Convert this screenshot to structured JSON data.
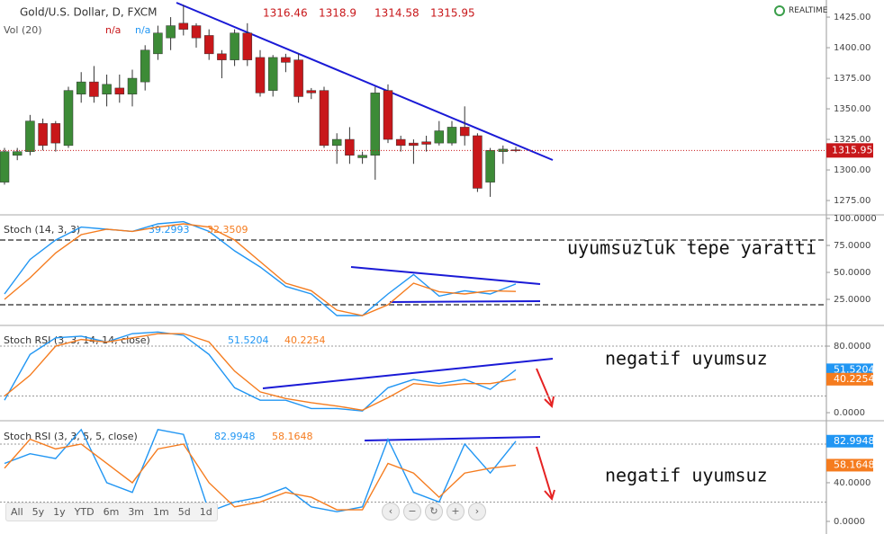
{
  "badge": "REALTIME",
  "toolbar": {
    "buttons": [
      "All",
      "5y",
      "1y",
      "YTD",
      "6m",
      "3m",
      "1m",
      "5d",
      "1d"
    ]
  },
  "chart_data": [
    {
      "type": "candlestick",
      "title": "Gold/U.S. Dollar, D, FXCM",
      "indicator": {
        "name": "Vol (20)",
        "values": [
          "n/a",
          "n/a"
        ]
      },
      "up_color": "#3d8b37",
      "down_color": "#c8171a",
      "open": [
        1290,
        1312,
        1315,
        1338,
        1338,
        1320,
        1362,
        1372,
        1362,
        1367,
        1362,
        1372,
        1395,
        1408,
        1420,
        1418,
        1410,
        1395,
        1390,
        1412,
        1392,
        1365,
        1392,
        1390,
        1365,
        1365,
        1320,
        1325,
        1310,
        1312,
        1365,
        1325,
        1322,
        1323,
        1322,
        1322,
        1335,
        1328,
        1290,
        1315,
        1316.46
      ],
      "high": [
        1318,
        1318,
        1345,
        1342,
        1340,
        1368,
        1380,
        1385,
        1378,
        1378,
        1382,
        1402,
        1418,
        1425,
        1435,
        1420,
        1415,
        1398,
        1415,
        1420,
        1398,
        1394,
        1395,
        1395,
        1367,
        1368,
        1330,
        1335,
        1315,
        1368,
        1370,
        1328,
        1325,
        1328,
        1340,
        1340,
        1352,
        1330,
        1318,
        1320,
        1318.9
      ],
      "low": [
        1288,
        1308,
        1312,
        1316,
        1315,
        1318,
        1355,
        1355,
        1352,
        1355,
        1352,
        1365,
        1390,
        1398,
        1410,
        1400,
        1390,
        1375,
        1385,
        1385,
        1360,
        1360,
        1380,
        1355,
        1358,
        1318,
        1305,
        1305,
        1305,
        1292,
        1322,
        1315,
        1305,
        1315,
        1320,
        1320,
        1320,
        1282,
        1278,
        1305,
        1314.58
      ],
      "close": [
        1315,
        1315,
        1340,
        1320,
        1322,
        1365,
        1372,
        1360,
        1370,
        1362,
        1375,
        1398,
        1412,
        1418,
        1415,
        1408,
        1395,
        1390,
        1412,
        1390,
        1363,
        1392,
        1388,
        1360,
        1363,
        1320,
        1325,
        1312,
        1312,
        1363,
        1325,
        1320,
        1320,
        1321,
        1332,
        1335,
        1328,
        1285,
        1316,
        1317,
        1315.95
      ],
      "ylim": [
        1264,
        1439
      ],
      "yticks": [
        {
          "value": 1275,
          "label": "1275.00"
        },
        {
          "value": 1300,
          "label": "1300.00"
        },
        {
          "value": 1325,
          "label": "1325.00"
        },
        {
          "value": 1350,
          "label": "1350.00"
        },
        {
          "value": 1375,
          "label": "1375.00"
        },
        {
          "value": 1400,
          "label": "1400.00"
        },
        {
          "value": 1425,
          "label": "1425.00"
        }
      ]
    },
    {
      "type": "line",
      "title": "Stoch (14, 3, 3)",
      "annotation": "uyumsuzluk tepe yaratti",
      "x": [
        0,
        2,
        4,
        6,
        8,
        10,
        12,
        14,
        16,
        18,
        20,
        22,
        24,
        26,
        28,
        30,
        32,
        34,
        36,
        38,
        40
      ],
      "series": [
        {
          "color": "#2196f3",
          "values": [
            30,
            62,
            80,
            92,
            90,
            88,
            95,
            97,
            88,
            70,
            55,
            37,
            30,
            10,
            10,
            30,
            48,
            28,
            33,
            30,
            39.2993
          ]
        },
        {
          "color": "#f57c1f",
          "values": [
            25,
            45,
            68,
            85,
            90,
            88,
            92,
            95,
            92,
            80,
            60,
            40,
            33,
            15,
            10,
            20,
            40,
            32,
            30,
            33,
            32.3509
          ]
        }
      ],
      "levels": [
        80,
        20
      ],
      "ylim": [
        2.5,
        102.5
      ],
      "yticks": [
        {
          "value": 25,
          "label": "25.0000"
        },
        {
          "value": 50,
          "label": "50.0000"
        },
        {
          "value": 75,
          "label": "75.0000"
        },
        {
          "value": 100,
          "label": "100.0000"
        }
      ]
    },
    {
      "type": "line",
      "title": "Stoch RSI (3, 3, 14, 14, close)",
      "annotation": "negatif uyumsuz",
      "x": [
        0,
        2,
        4,
        6,
        8,
        10,
        12,
        14,
        16,
        18,
        20,
        22,
        24,
        26,
        28,
        30,
        32,
        34,
        36,
        38,
        40
      ],
      "series": [
        {
          "color": "#2196f3",
          "values": [
            15,
            70,
            90,
            92,
            85,
            95,
            97,
            93,
            70,
            30,
            15,
            15,
            5,
            5,
            2,
            30,
            40,
            35,
            40,
            28,
            51.5204
          ]
        },
        {
          "color": "#f57c1f",
          "values": [
            20,
            45,
            80,
            88,
            85,
            90,
            95,
            95,
            85,
            50,
            25,
            17,
            12,
            8,
            3,
            18,
            35,
            32,
            35,
            35,
            40.2254
          ]
        }
      ],
      "levels": [
        80,
        20
      ],
      "ylim": [
        -8.6,
        103.8
      ],
      "yticks": [
        {
          "value": 0,
          "label": "0.0000"
        },
        {
          "value": 80,
          "label": "80.0000"
        }
      ]
    },
    {
      "type": "line",
      "title": "Stoch RSI (3, 3, 5, 5, close)",
      "annotation": "negatif uyumsuz",
      "x": [
        0,
        2,
        4,
        6,
        8,
        10,
        12,
        14,
        16,
        18,
        20,
        22,
        24,
        26,
        28,
        30,
        32,
        34,
        36,
        38,
        40
      ],
      "series": [
        {
          "color": "#2196f3",
          "values": [
            60,
            70,
            65,
            95,
            40,
            30,
            95,
            90,
            10,
            20,
            25,
            35,
            15,
            10,
            15,
            85,
            30,
            20,
            80,
            50,
            82.9948
          ]
        },
        {
          "color": "#f57c1f",
          "values": [
            55,
            85,
            75,
            80,
            60,
            40,
            75,
            80,
            40,
            15,
            20,
            30,
            25,
            12,
            12,
            60,
            50,
            25,
            50,
            55,
            58.1648
          ]
        }
      ],
      "levels": [
        80,
        20
      ],
      "ylim": [
        -11.2,
        102.3
      ],
      "yticks": [
        {
          "value": 0,
          "label": "0.0000"
        },
        {
          "value": 40,
          "label": "40.0000"
        }
      ]
    }
  ]
}
